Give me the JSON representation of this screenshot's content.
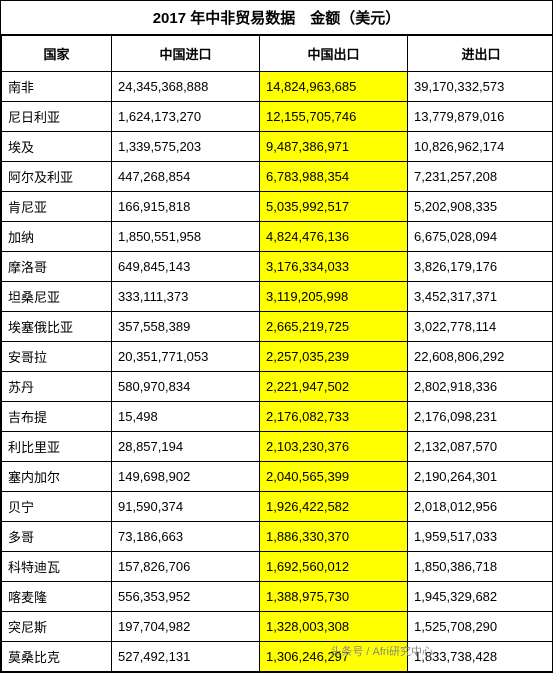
{
  "title": "2017 年中非贸易数据　金额（美元）",
  "columns": [
    "国家",
    "中国进口",
    "中国出口",
    "进出口"
  ],
  "highlight_col_index": 2,
  "highlight_color": "#ffff00",
  "rows": [
    {
      "country": "南非",
      "import": "24,345,368,888",
      "export": "14,824,963,685",
      "total": "39,170,332,573"
    },
    {
      "country": "尼日利亚",
      "import": "1,624,173,270",
      "export": "12,155,705,746",
      "total": "13,779,879,016"
    },
    {
      "country": "埃及",
      "import": "1,339,575,203",
      "export": "9,487,386,971",
      "total": "10,826,962,174"
    },
    {
      "country": "阿尔及利亚",
      "import": "447,268,854",
      "export": "6,783,988,354",
      "total": "7,231,257,208"
    },
    {
      "country": "肯尼亚",
      "import": "166,915,818",
      "export": "5,035,992,517",
      "total": "5,202,908,335"
    },
    {
      "country": "加纳",
      "import": "1,850,551,958",
      "export": "4,824,476,136",
      "total": "6,675,028,094"
    },
    {
      "country": "摩洛哥",
      "import": "649,845,143",
      "export": "3,176,334,033",
      "total": "3,826,179,176"
    },
    {
      "country": "坦桑尼亚",
      "import": "333,111,373",
      "export": "3,119,205,998",
      "total": "3,452,317,371"
    },
    {
      "country": "埃塞俄比亚",
      "import": "357,558,389",
      "export": "2,665,219,725",
      "total": "3,022,778,114"
    },
    {
      "country": "安哥拉",
      "import": "20,351,771,053",
      "export": "2,257,035,239",
      "total": "22,608,806,292"
    },
    {
      "country": "苏丹",
      "import": "580,970,834",
      "export": "2,221,947,502",
      "total": "2,802,918,336"
    },
    {
      "country": "吉布提",
      "import": "15,498",
      "export": "2,176,082,733",
      "total": "2,176,098,231"
    },
    {
      "country": "利比里亚",
      "import": "28,857,194",
      "export": "2,103,230,376",
      "total": "2,132,087,570"
    },
    {
      "country": "塞内加尔",
      "import": "149,698,902",
      "export": "2,040,565,399",
      "total": "2,190,264,301"
    },
    {
      "country": "贝宁",
      "import": "91,590,374",
      "export": "1,926,422,582",
      "total": "2,018,012,956"
    },
    {
      "country": "多哥",
      "import": "73,186,663",
      "export": "1,886,330,370",
      "total": "1,959,517,033"
    },
    {
      "country": "科特迪瓦",
      "import": "157,826,706",
      "export": "1,692,560,012",
      "total": "1,850,386,718"
    },
    {
      "country": "喀麦隆",
      "import": "556,353,952",
      "export": "1,388,975,730",
      "total": "1,945,329,682"
    },
    {
      "country": "突尼斯",
      "import": "197,704,982",
      "export": "1,328,003,308",
      "total": "1,525,708,290"
    },
    {
      "country": "莫桑比克",
      "import": "527,492,131",
      "export": "1,306,246,297",
      "total": "1,833,738,428"
    }
  ],
  "watermark": "头条号 / Afri研究中心"
}
